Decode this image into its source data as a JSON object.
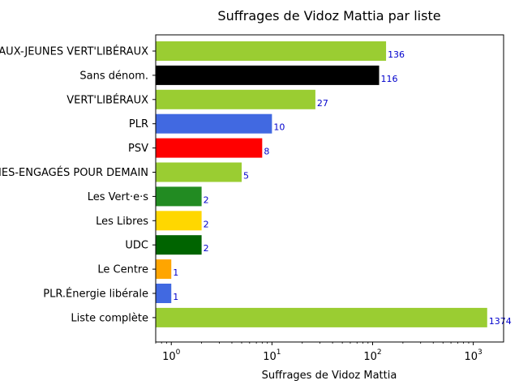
{
  "chart_data": {
    "type": "bar",
    "orientation": "horizontal",
    "title": "Suffrages de Vidoz Mattia par liste",
    "xlabel": "Suffrages de Vidoz Mattia",
    "ylabel": "",
    "x_scale": "log",
    "xlim": [
      0.7,
      2000
    ],
    "x_ticks": [
      {
        "value": 1,
        "base": "10",
        "exp": "0"
      },
      {
        "value": 10,
        "base": "10",
        "exp": "1"
      },
      {
        "value": 100,
        "base": "10",
        "exp": "2"
      },
      {
        "value": 1000,
        "base": "10",
        "exp": "3"
      }
    ],
    "grid": false,
    "categories": [
      "JEUNES LIBÉRAUX-JEUNES VERT'LIBÉRAUX",
      "Sans dénom.",
      "VERT'LIBÉRAUX",
      "PLR",
      "PSV",
      "JEUNES-ENGAGÉS POUR DEMAIN",
      "Les Vert·e·s",
      "Les Libres",
      "UDC",
      "Le Centre",
      "PLR.Énergie libérale",
      "Liste complète"
    ],
    "values": [
      136,
      116,
      27,
      10,
      8,
      5,
      2,
      2,
      2,
      1,
      1,
      1374
    ],
    "value_labels": [
      "136",
      "116",
      "27",
      "10",
      "8",
      "5",
      "2",
      "2",
      "2",
      "1",
      "1",
      "1374"
    ],
    "colors": [
      "#9acd32",
      "#000000",
      "#9acd32",
      "#4169e1",
      "#ff0000",
      "#9acd32",
      "#228b22",
      "#ffd700",
      "#006400",
      "#ffa500",
      "#4169e1",
      "#9acd32"
    ]
  }
}
